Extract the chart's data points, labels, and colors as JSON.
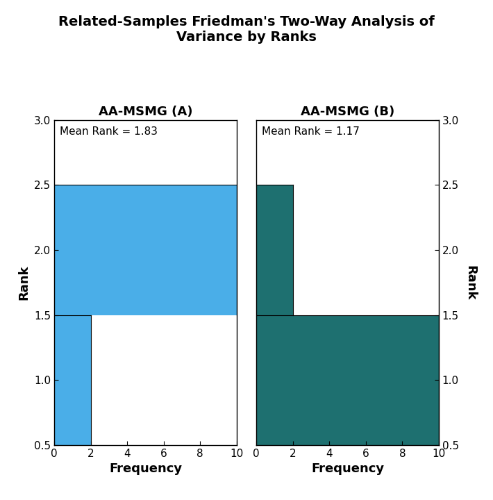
{
  "title": "Related-Samples Friedman's Two-Way Analysis of\nVariance by Ranks",
  "title_fontsize": 14,
  "left_panel": {
    "label": "AA-MSMG (A)",
    "mean_rank": "Mean Rank = 1.83",
    "color": "#4aaee8",
    "bars": [
      {
        "y_bottom": 0.5,
        "y_top": 1.5,
        "freq": 2
      },
      {
        "y_bottom": 1.5,
        "y_top": 2.5,
        "freq": 10
      }
    ],
    "xlabel": "Frequency",
    "ylabel": "Rank",
    "xlim": [
      0,
      10
    ],
    "ylim": [
      0.5,
      3.0
    ]
  },
  "right_panel": {
    "label": "AA-MSMG (B)",
    "mean_rank": "Mean Rank = 1.17",
    "color": "#1e7070",
    "bars": [
      {
        "y_bottom": 1.5,
        "y_top": 2.5,
        "freq": 2
      },
      {
        "y_bottom": 0.5,
        "y_top": 1.5,
        "freq": 10
      }
    ],
    "xlabel": "Frequency",
    "ylabel": "Rank",
    "xlim": [
      0,
      10
    ],
    "ylim": [
      0.5,
      3.0
    ]
  },
  "xticks": [
    0,
    2,
    4,
    6,
    8,
    10
  ],
  "yticks_left": [
    0.5,
    1.0,
    1.5,
    2.0,
    2.5,
    3.0
  ],
  "ytick_labels": [
    "0.5",
    "1.0",
    "1.5",
    "2.0",
    "2.5",
    "3.0"
  ],
  "background_color": "#ffffff",
  "tick_fontsize": 11,
  "label_fontsize": 13,
  "panel_label_fontsize": 13,
  "mean_rank_fontsize": 11
}
